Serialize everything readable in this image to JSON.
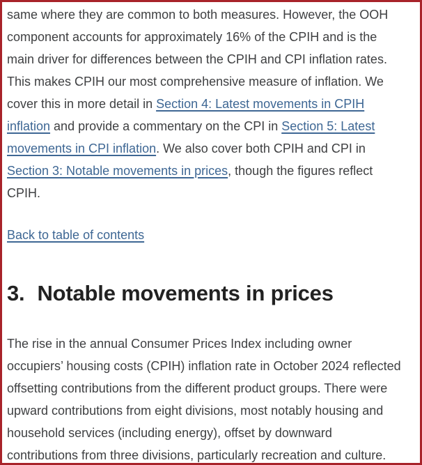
{
  "page": {
    "frame_color": "#a8232a",
    "background": "#ffffff"
  },
  "colors": {
    "body_text": "#3f4042",
    "heading_text": "#222222",
    "link_blue": "#3e6794"
  },
  "article": {
    "cpih_paragraph": {
      "segments": [
        {
          "name": "cpih-paragraph-text-1",
          "type": "text",
          "text": "same where they are common to both measures. However, the OOH\ncomponent accounts for approximately 16% of the CPIH and is the\nmain driver for differences between the CPIH and CPI inflation rates.\nThis makes CPIH our most comprehensive measure of inflation. We\ncover this in more detail in "
        },
        {
          "name": "section-4-link",
          "type": "link",
          "text": "Section 4: Latest movements in CPIH\ninflation"
        },
        {
          "name": "cpih-paragraph-text-2",
          "type": "text",
          "text": " and provide a commentary on the CPI in "
        },
        {
          "name": "section-5-link",
          "type": "link",
          "text": "Section 5: Latest\nmovements in CPI inflation"
        },
        {
          "name": "cpih-paragraph-text-3",
          "type": "text",
          "text": ". We also cover both CPIH and CPI in\n"
        },
        {
          "name": "section-3-link",
          "type": "link",
          "text": "Section 3: Notable movements in prices"
        },
        {
          "name": "cpih-paragraph-text-4",
          "type": "text",
          "text": ", though the figures reflect\nCPIH."
        }
      ]
    },
    "back_link": {
      "label": "Back to table of contents"
    },
    "section_heading": {
      "number": "3.",
      "title": "Notable movements in prices"
    },
    "notable_paragraph": {
      "text": "The rise in the annual Consumer Prices Index including owner\noccupiers’ housing costs (CPIH) inflation rate in October 2024 reflected\noffsetting contributions from the different product groups. There were\nupward contributions from eight divisions, most notably housing and\nhousehold services (including energy), offset by downward\ncontributions from three divisions, particularly recreation and culture."
    }
  }
}
